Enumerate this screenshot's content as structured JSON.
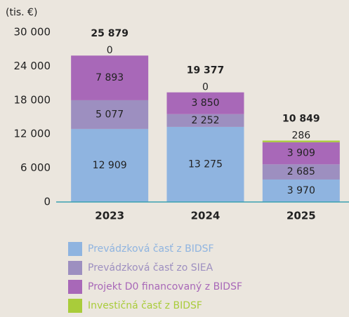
{
  "chart_data": {
    "type": "stacked_bar",
    "axis_label": "(tis. €)",
    "categories": [
      "2023",
      "2024",
      "2025"
    ],
    "series": [
      {
        "name": "Prevádzková časť z BIDSF",
        "color": "#8fb4e0",
        "values": [
          12909,
          13275,
          3970
        ],
        "value_labels": [
          "12 909",
          "13 275",
          "3 970"
        ]
      },
      {
        "name": "Prevádzková časť zo SIEA",
        "color": "#9d8fc0",
        "values": [
          5077,
          2252,
          2685
        ],
        "value_labels": [
          "5 077",
          "2 252",
          "2 685"
        ]
      },
      {
        "name": "Projekt D0 financovaný z BIDSF",
        "color": "#a868b8",
        "values": [
          7893,
          3850,
          3909
        ],
        "value_labels": [
          "7 893",
          "3 850",
          "3 909"
        ]
      },
      {
        "name": "Investičná časť z BIDSF",
        "color": "#a9cc3a",
        "values": [
          0,
          0,
          286
        ]
      }
    ],
    "totals": [
      25879,
      19377,
      10849
    ],
    "total_labels": [
      "25 879",
      "19 377",
      "10 849"
    ],
    "ylim": [
      0,
      30000
    ],
    "yticks": [
      0,
      {
        "value": 6000,
        "label": "6 000"
      },
      {
        "value": 12000,
        "label": "12 000"
      },
      {
        "value": 18000,
        "label": "18 000"
      },
      {
        "value": 24000,
        "label": "24 000"
      },
      {
        "value": 30000,
        "label": "30 000"
      }
    ],
    "legend": "bottom-left"
  }
}
